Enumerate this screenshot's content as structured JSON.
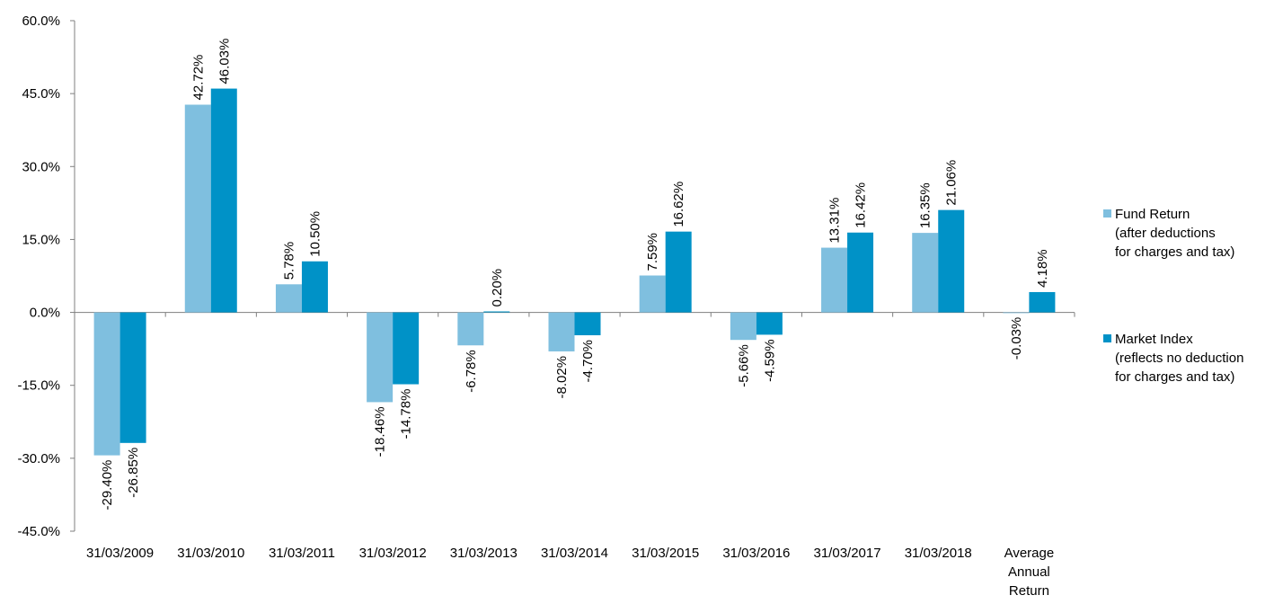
{
  "chart_data": {
    "type": "bar",
    "categories": [
      [
        "31/03/2009"
      ],
      [
        "31/03/2010"
      ],
      [
        "31/03/2011"
      ],
      [
        "31/03/2012"
      ],
      [
        "31/03/2013"
      ],
      [
        "31/03/2014"
      ],
      [
        "31/03/2015"
      ],
      [
        "31/03/2016"
      ],
      [
        "31/03/2017"
      ],
      [
        "31/03/2018"
      ],
      [
        "Average",
        "Annual",
        "Return"
      ]
    ],
    "series": [
      {
        "name": [
          "Fund Return",
          "(after deductions",
          "for charges and tax)"
        ],
        "color": "#7fbfdf",
        "values": [
          -29.4,
          42.72,
          5.78,
          -18.46,
          -6.78,
          -8.02,
          7.59,
          -5.66,
          13.31,
          16.35,
          -0.03
        ],
        "labels": [
          "-29.40%",
          "42.72%",
          "5.78%",
          "-18.46%",
          "-6.78%",
          "-8.02%",
          "7.59%",
          "-5.66%",
          "13.31%",
          "16.35%",
          "-0.03%"
        ]
      },
      {
        "name": [
          "Market Index",
          "(reflects no deduction",
          "for charges and tax)"
        ],
        "color": "#0092c7",
        "values": [
          -26.85,
          46.03,
          10.5,
          -14.78,
          0.2,
          -4.7,
          16.62,
          -4.59,
          16.42,
          21.06,
          4.18
        ],
        "labels": [
          "-26.85%",
          "46.03%",
          "10.50%",
          "-14.78%",
          "0.20%",
          "-4.70%",
          "16.62%",
          "-4.59%",
          "16.42%",
          "21.06%",
          "4.18%"
        ]
      }
    ],
    "yticks": [
      60,
      45,
      30,
      15,
      0,
      -15,
      -30,
      -45
    ],
    "ytick_labels": [
      "60.0%",
      "45.0%",
      "30.0%",
      "15.0%",
      "0.0%",
      "-15.0%",
      "-30.0%",
      "-45.0%"
    ],
    "ylim": [
      -45,
      60
    ],
    "grid": false,
    "legend_position": "right",
    "title": "",
    "xlabel": "",
    "ylabel": ""
  }
}
